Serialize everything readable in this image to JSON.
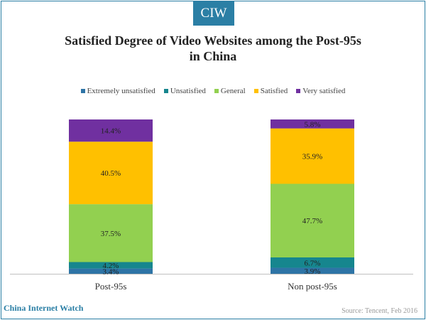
{
  "logo": "CIW",
  "footer": {
    "brand": "China Internet Watch",
    "source": "Source: Tencent, Feb 2016"
  },
  "chart_data": {
    "type": "bar",
    "stacked": true,
    "title": "Satisfied Degree of Video Websites among the Post-95s in China",
    "title_lines": [
      "Satisfied Degree of Video Websites among the Post-95s",
      "in China"
    ],
    "categories": [
      "Post-95s",
      "Non post-95s"
    ],
    "legend_position": "top",
    "grid": false,
    "series": [
      {
        "name": "Extremely unsatisfied",
        "values": [
          3.4,
          3.9
        ],
        "labels": [
          "3.4%",
          "3.9%"
        ],
        "color": "#2e74a6"
      },
      {
        "name": "Unsatisfied",
        "values": [
          4.2,
          6.7
        ],
        "labels": [
          "4.2%",
          "6.7%"
        ],
        "color": "#16868e"
      },
      {
        "name": "General",
        "values": [
          37.5,
          47.7
        ],
        "labels": [
          "37.5%",
          "47.7%"
        ],
        "color": "#92d050"
      },
      {
        "name": "Satisfied",
        "values": [
          40.5,
          35.9
        ],
        "labels": [
          "40.5%",
          "35.9%"
        ],
        "color": "#ffc000"
      },
      {
        "name": "Very satisfied",
        "values": [
          14.4,
          5.8
        ],
        "labels": [
          "14.4%",
          "5.8%"
        ],
        "color": "#7030a0"
      }
    ]
  }
}
